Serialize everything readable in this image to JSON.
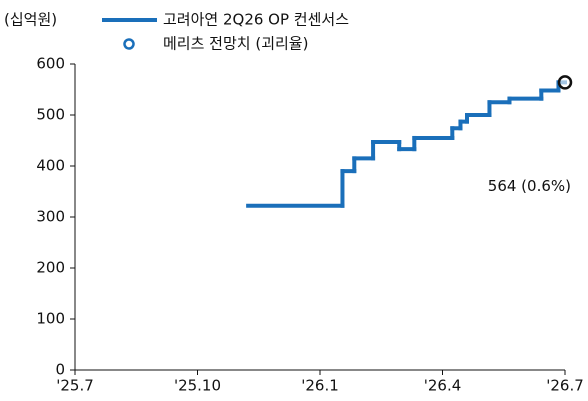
{
  "chart_data": {
    "type": "step",
    "unit_label": "(십억원)",
    "xlim": [
      0,
      12
    ],
    "xticks": [
      {
        "value": 0,
        "label": "'25.7"
      },
      {
        "value": 3,
        "label": "'25.10"
      },
      {
        "value": 6,
        "label": "'26.1"
      },
      {
        "value": 9,
        "label": "'26.4"
      },
      {
        "value": 12,
        "label": "'26.7"
      }
    ],
    "ylim": [
      0,
      600
    ],
    "yticks": [
      0,
      100,
      200,
      300,
      400,
      500,
      600
    ],
    "grid": false,
    "legend": "top",
    "series": [
      {
        "name": "고려아연 2Q26 OP 컨센서스",
        "color": "#1a6fba",
        "x": [
          4.24,
          6.55,
          6.84,
          7.3,
          7.94,
          8.31,
          9.24,
          9.44,
          9.6,
          10.15,
          10.64,
          11.42,
          11.84
        ],
        "values": [
          322,
          390,
          415,
          447,
          433,
          455,
          474,
          487,
          500,
          525,
          532,
          548,
          564
        ]
      },
      {
        "name": "메리츠 전망치 (괴리율)",
        "color": "#1a6fba",
        "edgecolor": "#111111",
        "marker": "circle",
        "x": [
          12
        ],
        "values": [
          564
        ],
        "value_labels": [
          "564 (0.6%)"
        ]
      }
    ]
  }
}
